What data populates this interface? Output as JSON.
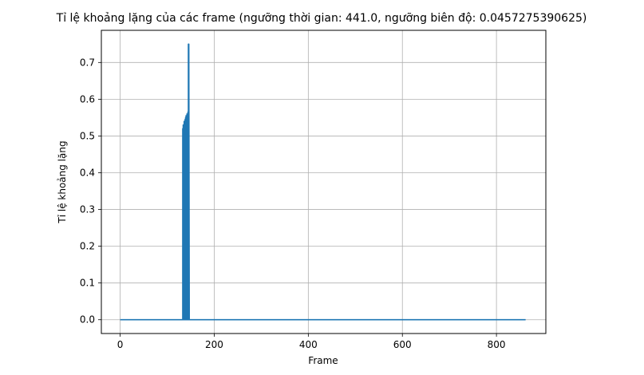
{
  "chart_data": {
    "type": "line",
    "title": "Tỉ lệ khoảng lặng của các frame (ngưỡng thời gian: 441.0, ngưỡng biên độ: 0.0457275390625)",
    "xlabel": "Frame",
    "ylabel": "Tỉ lệ khoảng lặng",
    "xlim": [
      -40,
      905
    ],
    "ylim": [
      -0.0375,
      0.7875
    ],
    "xticks": [
      0,
      200,
      400,
      600,
      800
    ],
    "yticks": [
      0.0,
      0.1,
      0.2,
      0.3,
      0.4,
      0.5,
      0.6,
      0.7
    ],
    "xtick_labels": [
      "0",
      "200",
      "400",
      "600",
      "800"
    ],
    "ytick_labels": [
      "0.0",
      "0.1",
      "0.2",
      "0.3",
      "0.4",
      "0.5",
      "0.6",
      "0.7"
    ],
    "grid": true,
    "series": [
      {
        "color": "#1f77b4",
        "x": [
          0,
          133,
          133,
          134,
          134,
          135,
          135,
          136,
          136,
          137,
          137,
          138,
          138,
          139,
          139,
          140,
          140,
          141,
          141,
          142,
          142,
          143,
          143,
          144,
          144,
          145,
          145,
          146,
          146,
          147,
          147,
          862
        ],
        "y": [
          0,
          0,
          0.52,
          0,
          0.53,
          0,
          0.525,
          0,
          0.54,
          0,
          0.535,
          0,
          0.545,
          0,
          0.55,
          0,
          0.555,
          0,
          0.55,
          0,
          0.56,
          0,
          0.56,
          0,
          0.565,
          0,
          0.75,
          0,
          0.75,
          0,
          0,
          0
        ]
      }
    ]
  }
}
